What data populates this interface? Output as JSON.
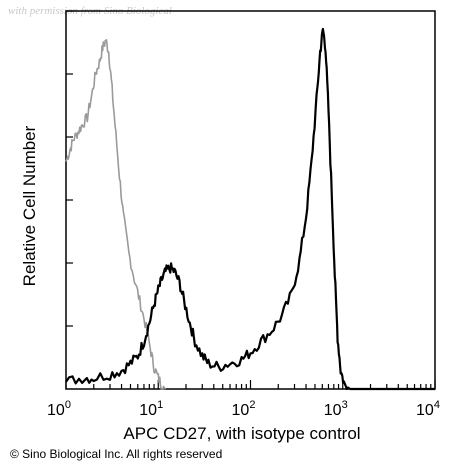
{
  "chart_data": {
    "type": "line",
    "title": "",
    "xlabel": "APC CD27, with isotype control",
    "ylabel": "Relative Cell Number",
    "x_scale": "log",
    "xlim": [
      1,
      10000
    ],
    "ylim": [
      0,
      1
    ],
    "x_ticks": [
      {
        "base": "10",
        "exp": "0"
      },
      {
        "base": "10",
        "exp": "1"
      },
      {
        "base": "10",
        "exp": "2"
      },
      {
        "base": "10",
        "exp": "3"
      },
      {
        "base": "10",
        "exp": "4"
      }
    ],
    "grid": false,
    "series": [
      {
        "role": "isotype control",
        "color": "#9a9a9a",
        "points": [
          [
            1.0,
            0.62
          ],
          [
            1.1,
            0.65
          ],
          [
            1.2,
            0.68
          ],
          [
            1.35,
            0.7
          ],
          [
            1.5,
            0.72
          ],
          [
            1.7,
            0.74
          ],
          [
            1.9,
            0.8
          ],
          [
            2.1,
            0.86
          ],
          [
            2.3,
            0.89
          ],
          [
            2.5,
            0.93
          ],
          [
            2.7,
            0.95
          ],
          [
            2.9,
            0.92
          ],
          [
            3.1,
            0.84
          ],
          [
            3.4,
            0.72
          ],
          [
            3.8,
            0.58
          ],
          [
            4.2,
            0.47
          ],
          [
            4.8,
            0.37
          ],
          [
            5.5,
            0.3
          ],
          [
            6.3,
            0.24
          ],
          [
            7.2,
            0.18
          ],
          [
            8.2,
            0.11
          ],
          [
            9.0,
            0.06
          ],
          [
            10.0,
            0.03
          ],
          [
            11.0,
            0.01
          ],
          [
            12.0,
            0.0
          ]
        ]
      },
      {
        "role": "APC CD27",
        "color": "#000000",
        "points": [
          [
            1.0,
            0.02
          ],
          [
            1.5,
            0.03
          ],
          [
            2.0,
            0.03
          ],
          [
            3.0,
            0.04
          ],
          [
            4.0,
            0.05
          ],
          [
            5.0,
            0.07
          ],
          [
            6.0,
            0.09
          ],
          [
            7.0,
            0.13
          ],
          [
            8.0,
            0.18
          ],
          [
            9.0,
            0.23
          ],
          [
            10.0,
            0.27
          ],
          [
            11.0,
            0.3
          ],
          [
            12.0,
            0.32
          ],
          [
            13.5,
            0.33
          ],
          [
            15.0,
            0.32
          ],
          [
            17.0,
            0.29
          ],
          [
            19.0,
            0.24
          ],
          [
            22.0,
            0.18
          ],
          [
            25.0,
            0.13
          ],
          [
            30.0,
            0.09
          ],
          [
            35.0,
            0.07
          ],
          [
            45.0,
            0.06
          ],
          [
            60.0,
            0.07
          ],
          [
            80.0,
            0.08
          ],
          [
            100.0,
            0.1
          ],
          [
            130.0,
            0.13
          ],
          [
            170.0,
            0.16
          ],
          [
            220.0,
            0.2
          ],
          [
            280.0,
            0.26
          ],
          [
            340.0,
            0.35
          ],
          [
            400.0,
            0.47
          ],
          [
            460.0,
            0.62
          ],
          [
            520.0,
            0.79
          ],
          [
            570.0,
            0.92
          ],
          [
            610.0,
            0.98
          ],
          [
            650.0,
            0.93
          ],
          [
            700.0,
            0.76
          ],
          [
            760.0,
            0.53
          ],
          [
            820.0,
            0.31
          ],
          [
            880.0,
            0.14
          ],
          [
            950.0,
            0.05
          ],
          [
            1050.0,
            0.01
          ],
          [
            1200.0,
            0.0
          ],
          [
            10000.0,
            0.0
          ]
        ]
      }
    ],
    "annotations": {
      "copyright": "© Sino Biological Inc. All rights reserved",
      "watermark": "with permission from Sino Biological"
    }
  }
}
